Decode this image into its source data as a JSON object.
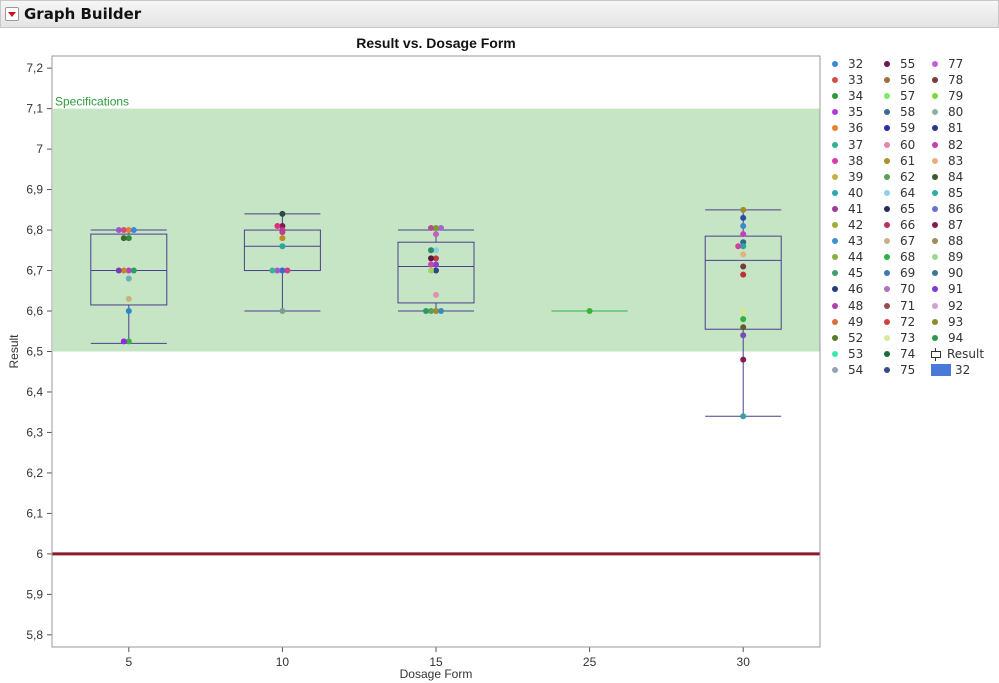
{
  "window": {
    "title": "Graph Builder"
  },
  "chart_data": {
    "type": "box",
    "title": "Result vs. Dosage Form",
    "xlabel": "Dosage Form",
    "ylabel": "Result",
    "categories": [
      "5",
      "10",
      "15",
      "25",
      "30"
    ],
    "ylim": [
      5.77,
      7.23
    ],
    "yticks": [
      "7,2",
      "7,1",
      "7",
      "6,9",
      "6,8",
      "6,7",
      "6,6",
      "6,5",
      "6,4",
      "6,3",
      "6,2",
      "6,1",
      "6",
      "5,9",
      "5,8"
    ],
    "ytick_values": [
      7.2,
      7.1,
      7.0,
      6.9,
      6.8,
      6.7,
      6.6,
      6.5,
      6.4,
      6.3,
      6.2,
      6.1,
      6.0,
      5.9,
      5.8
    ],
    "spec_band": {
      "label": "Specifications",
      "lower": 6.5,
      "upper": 7.1,
      "color": "#c5e5c5",
      "label_color": "#2e9a3a"
    },
    "reference_line": {
      "value": 6.0,
      "color": "#8b1a2b"
    },
    "box_color": "#4b3f8e",
    "boxes": [
      {
        "category": "5",
        "min": 6.52,
        "q1": 6.615,
        "median": 6.7,
        "q3": 6.79,
        "max": 6.8
      },
      {
        "category": "10",
        "min": 6.6,
        "q1": 6.7,
        "median": 6.76,
        "q3": 6.8,
        "max": 6.84
      },
      {
        "category": "15",
        "min": 6.6,
        "q1": 6.62,
        "median": 6.71,
        "q3": 6.77,
        "max": 6.8
      },
      {
        "category": "25",
        "min": 6.6,
        "q1": 6.6,
        "median": 6.6,
        "q3": 6.6,
        "max": 6.6,
        "line_color": "#2db34a"
      },
      {
        "category": "30",
        "min": 6.34,
        "q1": 6.555,
        "median": 6.725,
        "q3": 6.785,
        "max": 6.85
      }
    ],
    "points": [
      {
        "category": "5",
        "values": [
          6.8,
          6.8,
          6.8,
          6.8,
          6.78,
          6.78,
          6.7,
          6.7,
          6.7,
          6.7,
          6.68,
          6.63,
          6.6,
          6.525,
          6.525
        ],
        "colors": [
          "#e87b3a",
          "#d94c6b",
          "#3c86d9",
          "#9b59d0",
          "#2d8f3a",
          "#3a6b2a",
          "#c13ad1",
          "#c28a1c",
          "#2a9e5e",
          "#7c3ab8",
          "#6fb0b0",
          "#c9b27a",
          "#2f86c6",
          "#3cb33c",
          "#8a2be2"
        ]
      },
      {
        "category": "10",
        "values": [
          6.84,
          6.81,
          6.81,
          6.8,
          6.795,
          6.78,
          6.76,
          6.7,
          6.7,
          6.7,
          6.7,
          6.6
        ],
        "colors": [
          "#2a4a40",
          "#7a1a5e",
          "#e0307a",
          "#b8407a",
          "#c03a9a",
          "#c28a1c",
          "#2aa7a0",
          "#3c68c8",
          "#9a5ad8",
          "#d0408a",
          "#3bb58a",
          "#7aa090"
        ]
      },
      {
        "category": "15",
        "values": [
          6.805,
          6.805,
          6.805,
          6.79,
          6.75,
          6.75,
          6.73,
          6.73,
          6.715,
          6.715,
          6.7,
          6.7,
          6.64,
          6.6,
          6.6,
          6.6,
          6.6
        ],
        "colors": [
          "#7a9a30",
          "#b05090",
          "#9a6ad0",
          "#c060c0",
          "#8ad0e8",
          "#2a8a6a",
          "#c03a3a",
          "#5a1a3a",
          "#8a40d8",
          "#d040b0",
          "#2a4a7a",
          "#a0d060",
          "#e890a8",
          "#a08a30",
          "#5aa05a",
          "#3a8ac0",
          "#2a9a6a"
        ]
      },
      {
        "category": "25",
        "values": [
          6.6
        ],
        "colors": [
          "#3ab33c"
        ]
      },
      {
        "category": "30",
        "values": [
          6.85,
          6.83,
          6.81,
          6.79,
          6.77,
          6.76,
          6.76,
          6.74,
          6.71,
          6.69,
          6.6,
          6.58,
          6.56,
          6.54,
          6.48,
          6.34
        ],
        "colors": [
          "#a08a30",
          "#2a4aa8",
          "#3a8ac8",
          "#c040c0",
          "#2a6a8a",
          "#2aa7a0",
          "#d040a0",
          "#e8b080",
          "#7a3a3a",
          "#c0303a",
          "#d8e890",
          "#2ab33a",
          "#6a5a2a",
          "#7a4ab8",
          "#8a1a4a",
          "#3aa0a0"
        ]
      }
    ]
  },
  "legend": {
    "columns": [
      [
        {
          "label": "32",
          "color": "#3c86d9"
        },
        {
          "label": "33",
          "color": "#d94c4c"
        },
        {
          "label": "34",
          "color": "#2d9a3a"
        },
        {
          "label": "35",
          "color": "#b03ad8"
        },
        {
          "label": "36",
          "color": "#e8832a"
        },
        {
          "label": "37",
          "color": "#2ab390"
        },
        {
          "label": "38",
          "color": "#d83aa8"
        },
        {
          "label": "39",
          "color": "#c8b040"
        },
        {
          "label": "40",
          "color": "#2aa7b0"
        },
        {
          "label": "41",
          "color": "#a03a9a"
        },
        {
          "label": "42",
          "color": "#9ab030"
        },
        {
          "label": "43",
          "color": "#3a90d0"
        },
        {
          "label": "44",
          "color": "#8ab040"
        },
        {
          "label": "45",
          "color": "#3aa070"
        },
        {
          "label": "46",
          "color": "#2a3a7a"
        },
        {
          "label": "48",
          "color": "#b040b0"
        },
        {
          "label": "49",
          "color": "#d8703a"
        },
        {
          "label": "52",
          "color": "#5a7a2a"
        },
        {
          "label": "53",
          "color": "#3ae8b0"
        },
        {
          "label": "54",
          "color": "#9aa0b0"
        }
      ],
      [
        {
          "label": "55",
          "color": "#6a1a4a"
        },
        {
          "label": "56",
          "color": "#a0703a"
        },
        {
          "label": "57",
          "color": "#7ae86a"
        },
        {
          "label": "58",
          "color": "#3a6a8a"
        },
        {
          "label": "59",
          "color": "#2a2ab0"
        },
        {
          "label": "60",
          "color": "#e880b0"
        },
        {
          "label": "61",
          "color": "#b0902a"
        },
        {
          "label": "62",
          "color": "#5aa05a"
        },
        {
          "label": "64",
          "color": "#90d0e8"
        },
        {
          "label": "65",
          "color": "#2a2a5a"
        },
        {
          "label": "66",
          "color": "#c0305a"
        },
        {
          "label": "67",
          "color": "#c8b080"
        },
        {
          "label": "68",
          "color": "#2ab340"
        },
        {
          "label": "69",
          "color": "#3a7ab0"
        },
        {
          "label": "70",
          "color": "#b070c0"
        },
        {
          "label": "71",
          "color": "#9a4a4a"
        },
        {
          "label": "72",
          "color": "#d04040"
        },
        {
          "label": "73",
          "color": "#d8e8a0"
        },
        {
          "label": "74",
          "color": "#1a6a3a"
        },
        {
          "label": "75",
          "color": "#3a4a8a"
        }
      ],
      [
        {
          "label": "77",
          "color": "#c060d8"
        },
        {
          "label": "78",
          "color": "#7a3a3a"
        },
        {
          "label": "79",
          "color": "#7ad83a"
        },
        {
          "label": "80",
          "color": "#90b0a0"
        },
        {
          "label": "81",
          "color": "#2a3a8a"
        },
        {
          "label": "82",
          "color": "#c040b0"
        },
        {
          "label": "83",
          "color": "#e8b080"
        },
        {
          "label": "84",
          "color": "#3a5a2a"
        },
        {
          "label": "85",
          "color": "#2ab0a0"
        },
        {
          "label": "86",
          "color": "#6a70d0"
        },
        {
          "label": "87",
          "color": "#8a1a4a"
        },
        {
          "label": "88",
          "color": "#a08a5a"
        },
        {
          "label": "89",
          "color": "#a0d890"
        },
        {
          "label": "90",
          "color": "#3a7a8a"
        },
        {
          "label": "91",
          "color": "#7a3ad8"
        },
        {
          "label": "92",
          "color": "#d0a0d0"
        },
        {
          "label": "93",
          "color": "#8a8a2a"
        },
        {
          "label": "94",
          "color": "#2a9a4a"
        }
      ]
    ],
    "extra": [
      {
        "label": "Result",
        "kind": "box"
      },
      {
        "label": "32",
        "kind": "rect",
        "color": "#4a7ad8"
      }
    ]
  }
}
